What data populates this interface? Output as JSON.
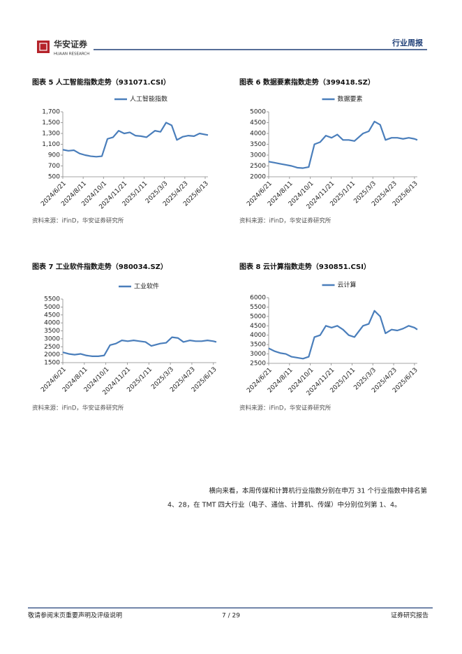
{
  "header": {
    "logo_text": "华安证券",
    "logo_sub": "HUAAN RESEARCH",
    "report_type": "行业周报"
  },
  "chart_data": [
    {
      "type": "line",
      "title": "图表 5 人工智能指数走势（931071.CSI）",
      "source": "资料来源：iFinD，华安证券研究所",
      "x": [
        "2024/6/21",
        "2024/7/5",
        "2024/7/19",
        "2024/8/2",
        "2024/8/16",
        "2024/8/30",
        "2024/9/13",
        "2024/9/27",
        "2024/10/11",
        "2024/10/25",
        "2024/11/8",
        "2024/11/22",
        "2024/12/6",
        "2024/12/20",
        "2025/1/3",
        "2025/1/17",
        "2025/2/7",
        "2025/2/21",
        "2025/3/7",
        "2025/3/21",
        "2025/4/3",
        "2025/4/18",
        "2025/5/2",
        "2025/5/16",
        "2025/5/30",
        "2025/6/13",
        "2025/6/20"
      ],
      "series": [
        {
          "name": "人工智能指数",
          "color": "#4a7ebb",
          "values": [
            1000,
            980,
            990,
            930,
            900,
            880,
            870,
            880,
            1200,
            1230,
            1350,
            1300,
            1320,
            1260,
            1250,
            1230,
            1350,
            1330,
            1500,
            1450,
            1180,
            1240,
            1260,
            1250,
            1300,
            1280,
            1270
          ]
        }
      ],
      "xlim": [
        "2024/6/21",
        "2025/6/20"
      ],
      "xticks": [
        "2024/6/21",
        "2024/8/11",
        "2024/10/1",
        "2024/11/21",
        "2025/1/11",
        "2025/3/3",
        "2025/4/23",
        "2025/6/13"
      ],
      "ylim": [
        500,
        1700
      ],
      "yticks": [
        500,
        700,
        900,
        {
          "value": 1100,
          "label": "1,100"
        },
        {
          "value": 1300,
          "label": "1,300"
        },
        {
          "value": 1500,
          "label": "1,500"
        },
        {
          "value": 1700,
          "label": "1,700"
        }
      ]
    },
    {
      "type": "line",
      "title": "图表 6 数据要素指数走势（399418.SZ）",
      "source": "资料来源：iFinD，华安证券研究所",
      "x": [
        "2024/6/21",
        "2024/7/5",
        "2024/7/19",
        "2024/8/2",
        "2024/8/16",
        "2024/8/30",
        "2024/9/13",
        "2024/9/27",
        "2024/10/11",
        "2024/10/25",
        "2024/11/8",
        "2024/11/22",
        "2024/12/6",
        "2024/12/20",
        "2025/1/3",
        "2025/1/17",
        "2025/2/7",
        "2025/2/21",
        "2025/3/7",
        "2025/3/21",
        "2025/4/3",
        "2025/4/18",
        "2025/5/2",
        "2025/5/16",
        "2025/5/30",
        "2025/6/13",
        "2025/6/20"
      ],
      "series": [
        {
          "name": "数据要素",
          "color": "#4a7ebb",
          "values": [
            2700,
            2650,
            2600,
            2550,
            2500,
            2420,
            2400,
            2450,
            3500,
            3600,
            3900,
            3800,
            3950,
            3700,
            3700,
            3650,
            4000,
            4100,
            4550,
            4400,
            3700,
            3800,
            3800,
            3750,
            3800,
            3750,
            3700
          ]
        }
      ],
      "xlim": [
        "2024/6/21",
        "2025/6/20"
      ],
      "xticks": [
        "2024/6/21",
        "2024/8/11",
        "2024/10/1",
        "2024/11/21",
        "2025/1/11",
        "2025/3/3",
        "2025/4/23",
        "2025/6/13"
      ],
      "ylim": [
        2000,
        5000
      ],
      "yticks": [
        2000,
        2500,
        3000,
        3500,
        4000,
        4500,
        5000
      ]
    },
    {
      "type": "line",
      "title": "图表 7 工业软件指数走势（980034.SZ）",
      "source": "资料来源：iFinD，华安证券研究所",
      "x": [
        "2024/6/21",
        "2024/7/5",
        "2024/7/19",
        "2024/8/2",
        "2024/8/16",
        "2024/8/30",
        "2024/9/13",
        "2024/9/27",
        "2024/10/11",
        "2024/10/25",
        "2024/11/8",
        "2024/11/22",
        "2024/12/6",
        "2024/12/20",
        "2025/1/3",
        "2025/1/17",
        "2025/2/7",
        "2025/2/21",
        "2025/3/7",
        "2025/3/21",
        "2025/4/3",
        "2025/4/18",
        "2025/5/2",
        "2025/5/16",
        "2025/5/30",
        "2025/6/13",
        "2025/6/20"
      ],
      "series": [
        {
          "name": "工业软件",
          "color": "#4a7ebb",
          "values": [
            2150,
            2050,
            2000,
            2050,
            1950,
            1900,
            1900,
            1950,
            2600,
            2700,
            2900,
            2850,
            2900,
            2850,
            2800,
            2550,
            2700,
            2750,
            3100,
            3050,
            2800,
            2900,
            2850,
            2850,
            2900,
            2850,
            2800
          ]
        }
      ],
      "xlim": [
        "2024/6/21",
        "2025/6/20"
      ],
      "xticks": [
        "2024/6/21",
        "2024/8/11",
        "2024/10/1",
        "2024/11/21",
        "2025/1/11",
        "2025/3/3",
        "2025/4/23",
        "2025/6/13"
      ],
      "ylim": [
        1500,
        5500
      ],
      "yticks": [
        1500,
        2000,
        2500,
        3000,
        3500,
        4000,
        4500,
        5000,
        5500
      ]
    },
    {
      "type": "line",
      "title": "图表 8 云计算指数走势（930851.CSI）",
      "source": "资料来源：iFinD，华安证券研究所",
      "x": [
        "2024/6/21",
        "2024/7/5",
        "2024/7/19",
        "2024/8/2",
        "2024/8/16",
        "2024/8/30",
        "2024/9/13",
        "2024/9/27",
        "2024/10/11",
        "2024/10/25",
        "2024/11/8",
        "2024/11/22",
        "2024/12/6",
        "2024/12/20",
        "2025/1/3",
        "2025/1/17",
        "2025/2/7",
        "2025/2/21",
        "2025/3/7",
        "2025/3/21",
        "2025/4/3",
        "2025/4/18",
        "2025/5/2",
        "2025/5/16",
        "2025/5/30",
        "2025/6/13",
        "2025/6/20"
      ],
      "series": [
        {
          "name": "云计算",
          "color": "#4a7ebb",
          "values": [
            3300,
            3150,
            3050,
            3000,
            2850,
            2800,
            2750,
            2850,
            3900,
            4000,
            4500,
            4400,
            4500,
            4300,
            4000,
            3900,
            4500,
            4600,
            5300,
            5000,
            4100,
            4300,
            4250,
            4350,
            4500,
            4400,
            4300
          ]
        }
      ],
      "xlim": [
        "2024/6/21",
        "2025/6/20"
      ],
      "xticks": [
        "2024/6/21",
        "2024/8/11",
        "2024/10/1",
        "2024/11/21",
        "2025/1/11",
        "2025/3/3",
        "2025/4/23",
        "2025/6/13"
      ],
      "ylim": [
        2500,
        6000
      ],
      "yticks": [
        2500,
        3000,
        3500,
        4000,
        4500,
        5000,
        5500,
        6000
      ]
    }
  ],
  "body": {
    "lines": [
      "横向来看，本周传媒和计算机行业指数分别在申万 31 个行业指数中排名第",
      "4、28，在 TMT 四大行业（电子、通信、计算机、传媒）中分别位列第 1、4。"
    ]
  },
  "footer": {
    "disclaimer": "敬请参阅末页重要声明及评级说明",
    "page": "7 / 29",
    "doc_type": "证券研究报告"
  }
}
